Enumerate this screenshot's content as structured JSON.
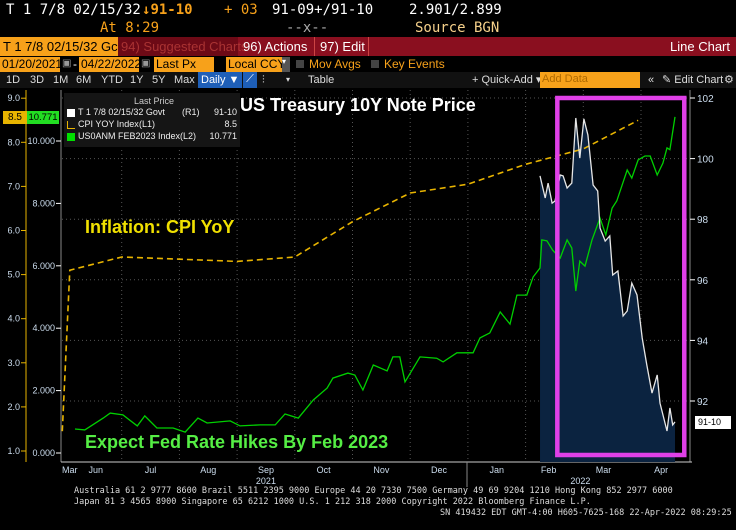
{
  "header": {
    "security": "T 1 7/8 02/15/32",
    "price": "91-10",
    "change": "+ 03",
    "bid_ask": "91-09+/91-10",
    "yields": "2.901/2.899",
    "time": "At 8:29",
    "mid": "--x--",
    "source": "Source BGN"
  },
  "toolbar": {
    "ticker": "T 1 7/8 02/15/32 Gc",
    "suggested": "94) Suggested Charts",
    "actions": "96) Actions",
    "edit": "97) Edit",
    "chart_type": "Line Chart"
  },
  "controls": {
    "start_date": "01/20/2021",
    "dash": "-",
    "end_date": "04/22/2022",
    "field": "Last Px",
    "currency": "Local CCY",
    "mov_avgs": "Mov Avgs",
    "key_events": "Key Events"
  },
  "ranges": [
    "1D",
    "3D",
    "1M",
    "6M",
    "YTD",
    "1Y",
    "5Y",
    "Max"
  ],
  "periodicity": "Daily ▼",
  "table": "Table",
  "quick_add": "+ Quick-Add ▾",
  "add_data_placeholder": "Add Data",
  "edit_chart": "✎ Edit Chart",
  "legend": {
    "title": "Last Price",
    "rows": [
      {
        "name": "T 1 7/8 02/15/32 Govt",
        "axis": "(R1)",
        "value": "91-10",
        "color": "#ffffff"
      },
      {
        "name": "CPI YOY Index",
        "axis": "(L1)",
        "value": "8.5",
        "color": "#e8b400"
      },
      {
        "name": "US0ANM FEB2023 Index",
        "axis": "(L2)",
        "value": "10.771",
        "color": "#00e000"
      }
    ]
  },
  "annotations": {
    "title": "US Treasury 10Y Note Price",
    "cpi": "Inflation: CPI YoY",
    "fed": "Expect Fed Rate Hikes By Feb 2023"
  },
  "badges": {
    "cpi": "8.5",
    "fed": "10.771",
    "price": "91-10"
  },
  "colors": {
    "cpi": "#e8b400",
    "fed": "#00d000",
    "price": "#e6e6e6",
    "fill": "#0b2340",
    "highlight": "#e040e8"
  },
  "chart_data": {
    "type": "line",
    "title": "US Treasury 10Y Note Price",
    "x_ticks": [
      {
        "m": 0.1,
        "label": "Mar"
      },
      {
        "m": 0.55,
        "label": "Jun"
      },
      {
        "m": 1.5,
        "label": "Jul"
      },
      {
        "m": 2.5,
        "label": "Aug"
      },
      {
        "m": 3.5,
        "label": "Sep"
      },
      {
        "m": 4.5,
        "label": "Oct"
      },
      {
        "m": 5.5,
        "label": "Nov"
      },
      {
        "m": 6.5,
        "label": "Dec"
      },
      {
        "m": 7.5,
        "label": "Jan"
      },
      {
        "m": 8.4,
        "label": "Feb"
      },
      {
        "m": 9.35,
        "label": "Mar"
      },
      {
        "m": 10.35,
        "label": "Apr"
      }
    ],
    "years": [
      {
        "m": 3.5,
        "label": "2021"
      },
      {
        "m": 8.95,
        "label": "2022"
      }
    ],
    "y_left1": {
      "ticks": [
        "1.0",
        "2.0",
        "3.0",
        "4.0",
        "5.0",
        "6.0",
        "7.0",
        "8.0",
        "9.0"
      ],
      "range": [
        1,
        9
      ]
    },
    "y_left2": {
      "ticks": [
        "0.000",
        "2.000",
        "4.000",
        "6.000",
        "8.000",
        "10.000"
      ],
      "range": [
        0,
        10
      ]
    },
    "y_right": {
      "ticks": [
        "92",
        "94",
        "96",
        "98",
        "100",
        "102"
      ],
      "range": [
        92,
        102
      ]
    },
    "series": [
      {
        "name": "CPI YOY Index",
        "axis": "L1",
        "points": [
          [
            -0.03,
            1.45
          ],
          [
            0.1,
            5.1
          ],
          [
            1,
            5.4
          ],
          [
            3,
            5.3
          ],
          [
            4,
            5.4
          ],
          [
            5,
            6.2
          ],
          [
            6,
            6.85
          ],
          [
            7,
            7.05
          ],
          [
            8,
            7.5
          ],
          [
            9,
            7.85
          ],
          [
            9.95,
            8.5
          ]
        ]
      },
      {
        "name": "US0ANM FEB2023 Index",
        "axis": "L2",
        "points": [
          [
            0.19,
            0.77
          ],
          [
            0.36,
            0.74
          ],
          [
            0.68,
            1.12
          ],
          [
            0.8,
            1.28
          ],
          [
            1.02,
            1.22
          ],
          [
            1.27,
            0.87
          ],
          [
            1.4,
            1.19
          ],
          [
            1.61,
            0.8
          ],
          [
            1.89,
            0.8
          ],
          [
            2.1,
            0.67
          ],
          [
            2.32,
            1.12
          ],
          [
            2.48,
            0.96
          ],
          [
            2.88,
            1.03
          ],
          [
            3.05,
            0.87
          ],
          [
            3.4,
            0.9
          ],
          [
            3.66,
            0.9
          ],
          [
            3.83,
            1.25
          ],
          [
            4.06,
            1.12
          ],
          [
            4.32,
            1.7
          ],
          [
            4.56,
            2.08
          ],
          [
            4.66,
            2.4
          ],
          [
            4.92,
            2.56
          ],
          [
            5.04,
            2.5
          ],
          [
            5.18,
            2.02
          ],
          [
            5.36,
            2.82
          ],
          [
            5.6,
            2.63
          ],
          [
            5.7,
            3.08
          ],
          [
            5.82,
            3.08
          ],
          [
            5.91,
            2.28
          ],
          [
            6.17,
            3.08
          ],
          [
            6.46,
            3.04
          ],
          [
            6.57,
            2.92
          ],
          [
            6.81,
            3.21
          ],
          [
            7.09,
            3.21
          ],
          [
            7.21,
            3.69
          ],
          [
            7.38,
            3.85
          ],
          [
            7.56,
            4.52
          ],
          [
            7.73,
            4.13
          ],
          [
            7.85,
            5.06
          ],
          [
            8.02,
            5.06
          ],
          [
            8.13,
            5.64
          ],
          [
            8.25,
            5.93
          ],
          [
            8.28,
            6.83
          ],
          [
            8.37,
            6.8
          ],
          [
            8.47,
            6.5
          ],
          [
            8.6,
            6.25
          ],
          [
            8.72,
            6.83
          ],
          [
            8.8,
            6.57
          ],
          [
            8.87,
            5.19
          ],
          [
            8.94,
            6.15
          ],
          [
            9.03,
            5.99
          ],
          [
            9.15,
            6.83
          ],
          [
            9.29,
            7.53
          ],
          [
            9.39,
            6.99
          ],
          [
            9.5,
            7.85
          ],
          [
            9.58,
            8.08
          ],
          [
            9.76,
            9.07
          ],
          [
            9.84,
            8.81
          ],
          [
            9.95,
            9.39
          ],
          [
            10.07,
            9.52
          ],
          [
            10.16,
            9.52
          ],
          [
            10.28,
            8.91
          ],
          [
            10.38,
            9.29
          ],
          [
            10.45,
            9.78
          ],
          [
            10.5,
            9.72
          ],
          [
            10.59,
            10.771
          ]
        ]
      },
      {
        "name": "T 1 7/8 02/15/32 Govt",
        "axis": "R1",
        "points": [
          [
            8.25,
            99.43
          ],
          [
            8.34,
            98.7
          ],
          [
            8.39,
            99.19
          ],
          [
            8.46,
            98.53
          ],
          [
            8.51,
            98.6
          ],
          [
            8.6,
            99.46
          ],
          [
            8.65,
            99.43
          ],
          [
            8.72,
            99.03
          ],
          [
            8.8,
            99.19
          ],
          [
            8.87,
            101.34
          ],
          [
            8.94,
            100.02
          ],
          [
            9.01,
            101.31
          ],
          [
            9.08,
            100.78
          ],
          [
            9.17,
            99.13
          ],
          [
            9.25,
            98.93
          ],
          [
            9.29,
            97.71
          ],
          [
            9.38,
            97.28
          ],
          [
            9.46,
            97.45
          ],
          [
            9.51,
            96.16
          ],
          [
            9.6,
            96.29
          ],
          [
            9.69,
            94.81
          ],
          [
            9.76,
            94.97
          ],
          [
            9.84,
            95.89
          ],
          [
            9.93,
            95.5
          ],
          [
            10.02,
            94.08
          ],
          [
            10.1,
            93.19
          ],
          [
            10.19,
            92.26
          ],
          [
            10.28,
            92.86
          ],
          [
            10.33,
            91.93
          ],
          [
            10.45,
            91.01
          ],
          [
            10.5,
            91.77
          ],
          [
            10.55,
            91.21
          ],
          [
            10.59,
            91.31
          ]
        ]
      }
    ],
    "highlight_range": [
      8.55,
      10.75
    ],
    "grid": true,
    "legend": "top-left"
  },
  "footer": {
    "line1": "Australia 61 2 9777 8600 Brazil 5511 2395 9000 Europe 44 20 7330 7500 Germany 49 69 9204 1210 Hong Kong 852 2977 6000",
    "line2": "Japan 81 3 4565 8900      Singapore 65 6212 1000      U.S. 1 212 318 2000        Copyright 2022 Bloomberg Finance L.P.",
    "line3": "SN 419432 EDT  GMT-4:00 H605-7625-168 22-Apr-2022 08:29:25"
  }
}
